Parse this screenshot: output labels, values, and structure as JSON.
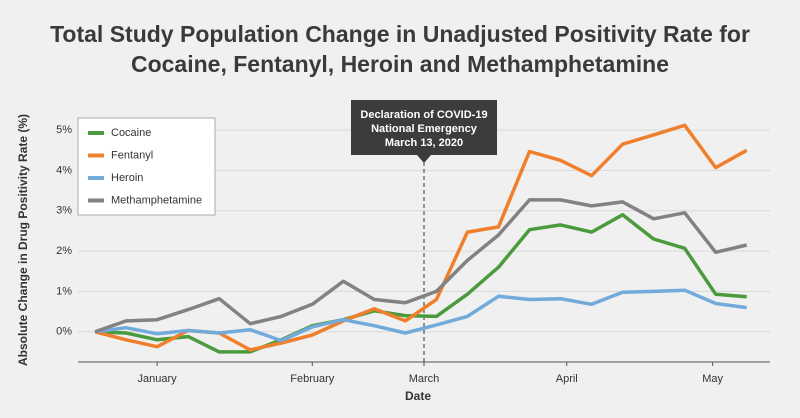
{
  "chart_data": {
    "type": "line",
    "title_lines": [
      "Total Study Population Change in Unadjusted Positivity Rate for",
      "Cocaine, Fentanyl, Heroin and Methamphetamine"
    ],
    "xlabel": "Date",
    "ylabel": "Absolute Change in Drug Positivity Rate (%)",
    "x": [
      0,
      1,
      2,
      3,
      4,
      5,
      6,
      7,
      8,
      9,
      10,
      11,
      12,
      13,
      14,
      15,
      16,
      17,
      18,
      19,
      20,
      21
    ],
    "xlim": [
      -0.55,
      21.75
    ],
    "xticks": [
      {
        "value": 2,
        "label": "January"
      },
      {
        "value": 7,
        "label": "February"
      },
      {
        "value": 10.6,
        "label": "March"
      },
      {
        "value": 15.2,
        "label": "April"
      },
      {
        "value": 19.9,
        "label": "May"
      }
    ],
    "ylim": [
      -0.75,
      5.3
    ],
    "yticks": [
      {
        "value": 0,
        "label": "0%"
      },
      {
        "value": 1,
        "label": "1%"
      },
      {
        "value": 2,
        "label": "2%"
      },
      {
        "value": 3,
        "label": "3%"
      },
      {
        "value": 4,
        "label": "4%"
      },
      {
        "value": 5,
        "label": "5%"
      }
    ],
    "grid": true,
    "legend": "upper left",
    "series": [
      {
        "name": "Cocaine",
        "color": "#4b9b3d",
        "values": [
          0,
          -0.03,
          -0.2,
          -0.12,
          -0.5,
          -0.5,
          -0.2,
          0.15,
          0.3,
          0.52,
          0.4,
          0.38,
          0.93,
          1.6,
          2.53,
          2.65,
          2.47,
          2.9,
          2.3,
          2.07,
          0.93,
          0.87
        ]
      },
      {
        "name": "Fentanyl",
        "color": "#ef7f2c",
        "values": [
          0,
          -0.2,
          -0.37,
          0.03,
          -0.03,
          -0.45,
          -0.28,
          -0.08,
          0.27,
          0.57,
          0.27,
          0.8,
          2.47,
          2.6,
          4.47,
          4.25,
          3.87,
          4.65,
          4.88,
          5.12,
          4.07,
          4.5
        ]
      },
      {
        "name": "Heroin",
        "color": "#72aadc",
        "values": [
          0,
          0.1,
          -0.05,
          0.03,
          -0.03,
          0.05,
          -0.22,
          0.12,
          0.3,
          0.15,
          -0.03,
          0.17,
          0.38,
          0.88,
          0.8,
          0.82,
          0.68,
          0.98,
          1.0,
          1.03,
          0.7,
          0.6
        ]
      },
      {
        "name": "Methamphetamine",
        "color": "#828282",
        "values": [
          0,
          0.27,
          0.3,
          0.55,
          0.82,
          0.2,
          0.38,
          0.68,
          1.25,
          0.8,
          0.72,
          1.0,
          1.77,
          2.4,
          3.27,
          3.27,
          3.12,
          3.22,
          2.8,
          2.95,
          1.97,
          2.15
        ]
      }
    ],
    "annotation": {
      "x": 10.6,
      "lines": [
        "Declaration of COVID-19",
        "National Emergency",
        "March 13, 2020"
      ]
    }
  }
}
